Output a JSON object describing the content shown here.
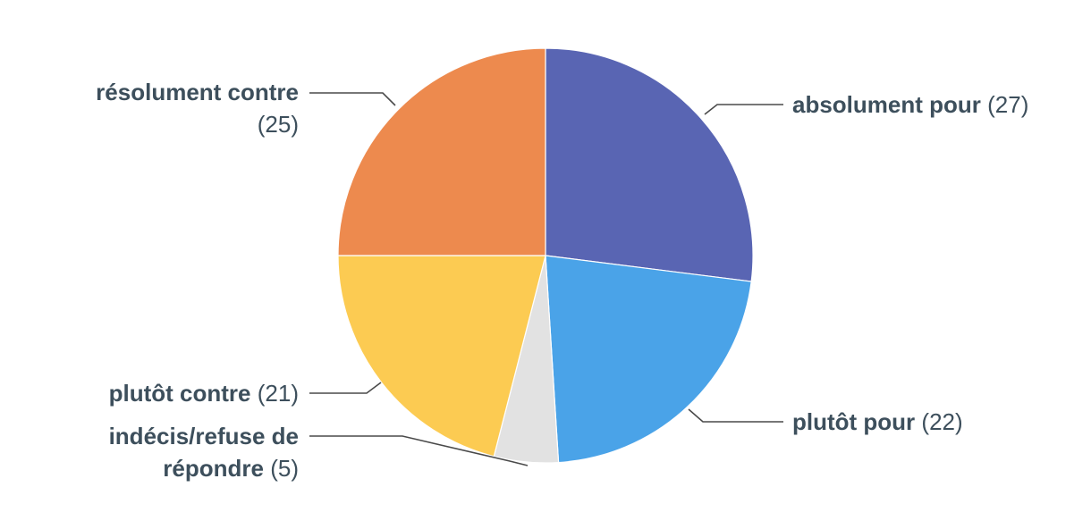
{
  "chart_data": {
    "type": "pie",
    "slices": [
      {
        "label": "absolument pour",
        "value": 27,
        "display": "(27)",
        "color": "#5965b3"
      },
      {
        "label": "plutôt pour",
        "value": 22,
        "display": "(22)",
        "color": "#4aa3e8"
      },
      {
        "label": "indécis/refuse de répondre",
        "value": 5,
        "display": "(5)",
        "color": "#e2e2e2"
      },
      {
        "label": "plutôt contre",
        "value": 21,
        "display": "(21)",
        "color": "#fccb52"
      },
      {
        "label": "résolument contre",
        "value": 25,
        "display": "(25)",
        "color": "#ed8a4e"
      }
    ],
    "label_text": {
      "absolument_pour": {
        "cat": "absolument pour",
        "num": "(27)"
      },
      "plutot_pour": {
        "cat": "plutôt pour",
        "num": "(22)"
      },
      "indecis_line1": "indécis/refuse de",
      "indecis_line2": "répondre",
      "indecis_num": "(5)",
      "plutot_contre": {
        "cat": "plutôt contre",
        "num": "(21)"
      },
      "resolument_contre": "résolument contre",
      "resolument_contre_num": "(25)"
    }
  }
}
